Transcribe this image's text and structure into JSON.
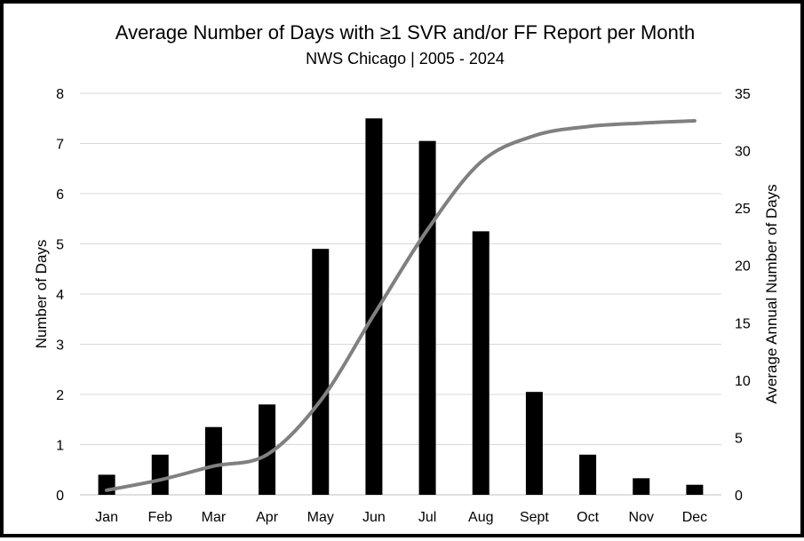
{
  "chart_data": {
    "type": "bar",
    "title": "Average Number of Days with ≥1 SVR and/or FF Report per Month",
    "subtitle": "NWS Chicago | 2005 - 2024",
    "xlabel": "",
    "ylabel": "Number of Days",
    "y2label": "Average Annual Number of Days",
    "categories": [
      "Jan",
      "Feb",
      "Mar",
      "Apr",
      "May",
      "Jun",
      "Jul",
      "Aug",
      "Sept",
      "Oct",
      "Nov",
      "Dec"
    ],
    "ylim": [
      0,
      8
    ],
    "y2lim": [
      0,
      35
    ],
    "yticks": [
      "0",
      "1",
      "2",
      "3",
      "4",
      "5",
      "6",
      "7",
      "8"
    ],
    "y2ticks": [
      "0",
      "5",
      "10",
      "15",
      "20",
      "25",
      "30",
      "35"
    ],
    "grid": true,
    "series": [
      {
        "type": "bar",
        "axis": "left",
        "color": "#000000",
        "values": [
          0.4,
          0.8,
          1.35,
          1.8,
          4.9,
          7.5,
          7.05,
          5.25,
          2.05,
          0.8,
          0.33,
          0.2
        ]
      },
      {
        "type": "line",
        "axis": "right",
        "color": "#808080",
        "smooth": true,
        "values": [
          0.4,
          1.3,
          2.5,
          3.5,
          8.2,
          15.7,
          23.1,
          29.0,
          31.3,
          32.1,
          32.4,
          32.6
        ]
      }
    ]
  }
}
